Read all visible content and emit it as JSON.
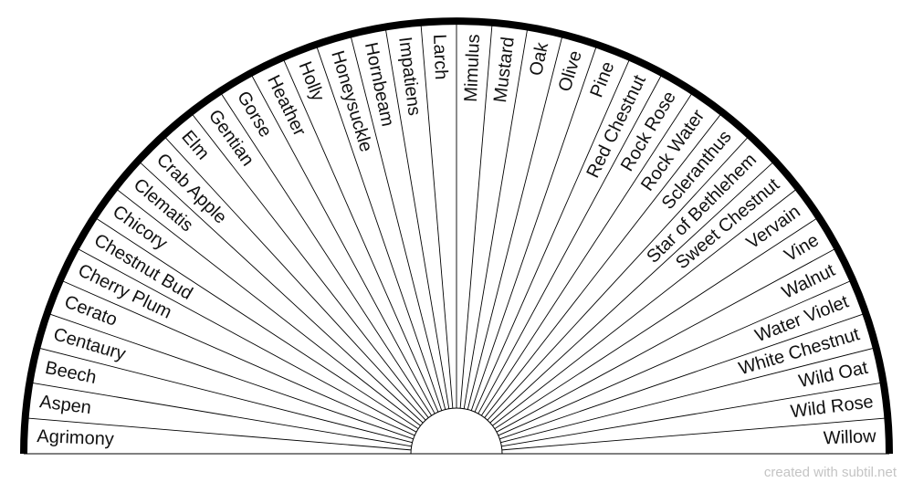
{
  "chart_title": "",
  "footer": {
    "credit": "created with subtil.net"
  },
  "colors": {
    "rim": "#000000",
    "divider": "#000000",
    "text": "#111111",
    "credit": "#c4c4c4",
    "background": "#ffffff"
  },
  "remedies": [
    "Agrimony",
    "Aspen",
    "Beech",
    "Centaury",
    "Cerato",
    "Cherry Plum",
    "Chestnut Bud",
    "Chicory",
    "Clematis",
    "Crab Apple",
    "Elm",
    "Gentian",
    "Gorse",
    "Heather",
    "Holly",
    "Honeysuckle",
    "Hornbeam",
    "Impatiens",
    "Larch",
    "Mimulus",
    "Mustard",
    "Oak",
    "Olive",
    "Pine",
    "Red Chestnut",
    "Rock Rose",
    "Rock Water",
    "Scleranthus",
    "Star of Bethlehem",
    "Sweet Chestnut",
    "Vervain",
    "Vine",
    "Walnut",
    "Water Violet",
    "White Chestnut",
    "Wild Oat",
    "Wild Rose",
    "Willow"
  ]
}
